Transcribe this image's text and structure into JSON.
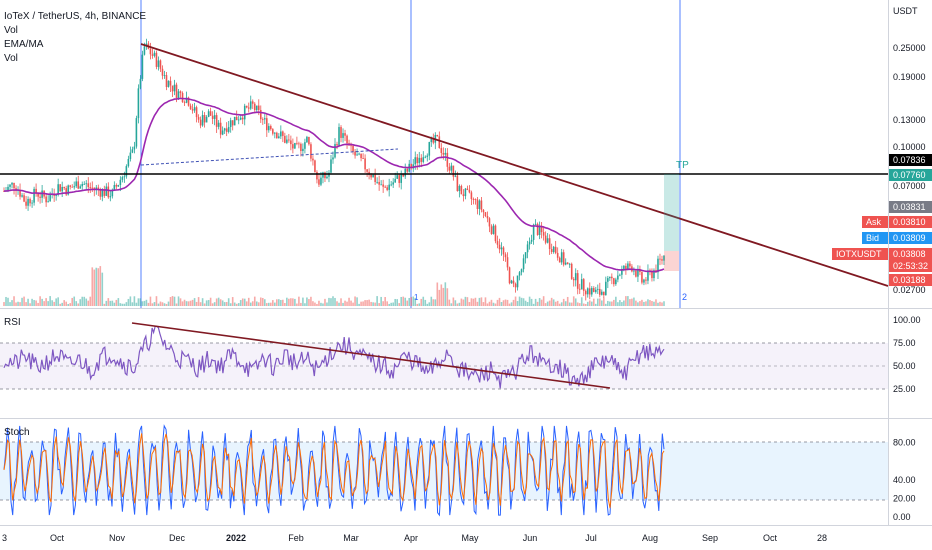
{
  "chart_data": {
    "type": "candlestick",
    "title": "IoTeX / TetherUS, 4h, BINANCE",
    "indicators": [
      "Vol",
      "EMA/MA",
      "Vol"
    ],
    "y_axis_unit": "USDT",
    "price_ticks": [
      "0.25000",
      "0.19000",
      "0.13000",
      "0.10000",
      "0.07000",
      "0.02700"
    ],
    "x_ticks": [
      "3",
      "Oct",
      "Nov",
      "Dec",
      "2022",
      "Feb",
      "Mar",
      "Apr",
      "May",
      "Jun",
      "Jul",
      "Aug",
      "Sep",
      "Oct",
      "28"
    ],
    "price_tags": [
      {
        "label": "",
        "value": "0.07836",
        "color": "#000000"
      },
      {
        "label": "",
        "value": "0.07760",
        "color": "#26a69a"
      },
      {
        "label": "",
        "value": "0.03831",
        "color": "#787b86"
      },
      {
        "label": "Ask",
        "value": "0.03810",
        "color": "#ef5350"
      },
      {
        "label": "Bid",
        "value": "0.03809",
        "color": "#2196f3"
      },
      {
        "label": "IOTXUSDT",
        "value": "0.03808",
        "color": "#ef5350"
      },
      {
        "label": "",
        "value": "02:53:32",
        "color": "#ef5350"
      },
      {
        "label": "",
        "value": "0.03188",
        "color": "#ef5350"
      }
    ],
    "annotations": [
      "TP",
      "1",
      "2"
    ],
    "trendline": {
      "from": [
        "Nov",
        0.26
      ],
      "to": [
        "28",
        0.027
      ]
    },
    "horizontal_line": 0.07836,
    "price_path": [
      0.069,
      0.074,
      0.062,
      0.068,
      0.064,
      0.072,
      0.07,
      0.075,
      0.071,
      0.069,
      0.067,
      0.08,
      0.1,
      0.26,
      0.23,
      0.19,
      0.17,
      0.16,
      0.13,
      0.14,
      0.12,
      0.13,
      0.14,
      0.15,
      0.13,
      0.12,
      0.11,
      0.1,
      0.11,
      0.075,
      0.08,
      0.12,
      0.1,
      0.09,
      0.08,
      0.07,
      0.075,
      0.08,
      0.09,
      0.1,
      0.11,
      0.09,
      0.07,
      0.065,
      0.06,
      0.05,
      0.04,
      0.028,
      0.035,
      0.05,
      0.045,
      0.04,
      0.035,
      0.03,
      0.028,
      0.027,
      0.03,
      0.033,
      0.035,
      0.03,
      0.033,
      0.038
    ],
    "rsi": {
      "label": "RSI",
      "ticks": [
        "100.00",
        "75.00",
        "50.00",
        "25.00"
      ],
      "band": [
        30,
        70
      ],
      "series": [
        58,
        52,
        60,
        48,
        55,
        62,
        50,
        57,
        45,
        60,
        64,
        53,
        48,
        70,
        90,
        72,
        60,
        55,
        48,
        58,
        50,
        62,
        55,
        42,
        60,
        48,
        63,
        52,
        57,
        45,
        62,
        73,
        70,
        60,
        55,
        50,
        45,
        60,
        55,
        42,
        50,
        66,
        48,
        40,
        38,
        46,
        35,
        40,
        58,
        64,
        48,
        55,
        40,
        30,
        45,
        52,
        58,
        40,
        50,
        68,
        62,
        70
      ]
    },
    "stoch": {
      "label": "Stoch",
      "ticks": [
        "80.00",
        "40.00",
        "20.00",
        "0.00"
      ],
      "band": [
        20,
        80
      ]
    }
  }
}
